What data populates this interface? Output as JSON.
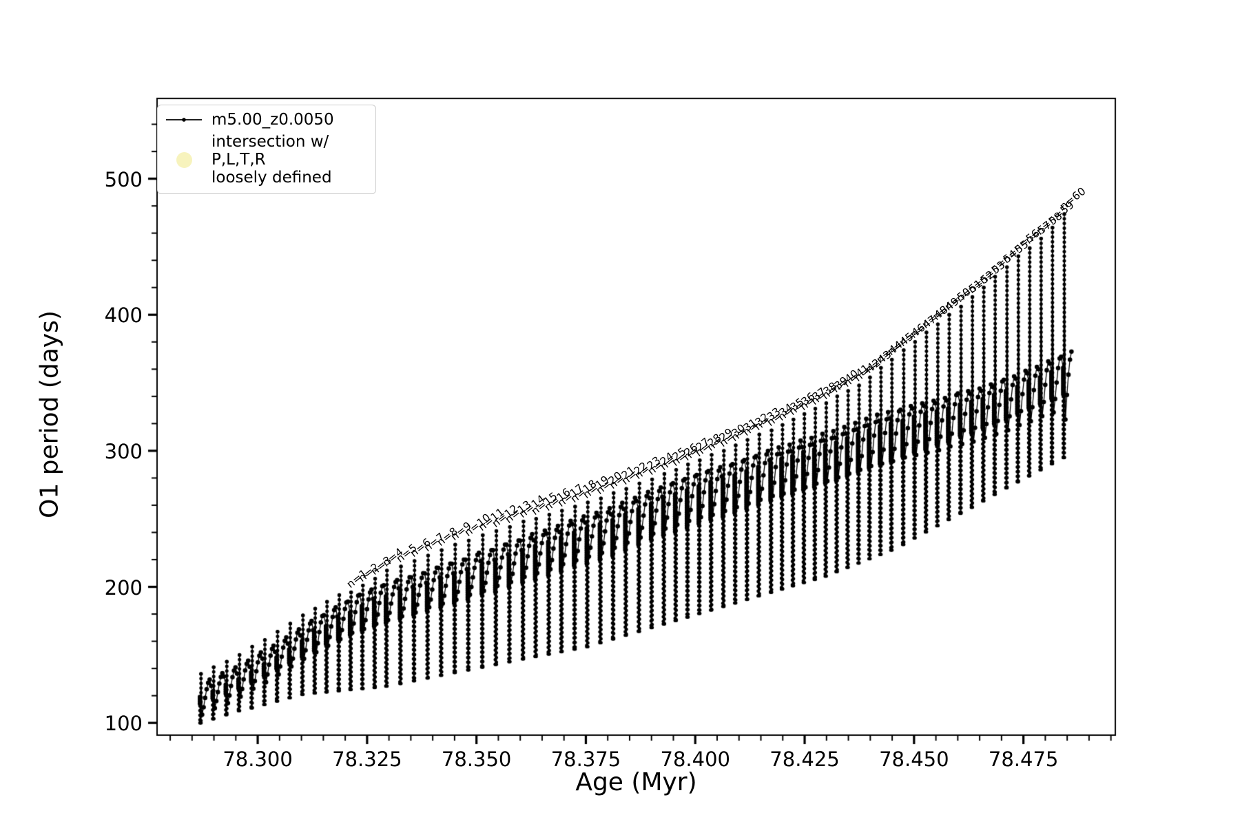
{
  "figure": {
    "background": "#ffffff",
    "series_color": "#000000",
    "intersection_color": "#f7f3bd"
  },
  "legend": {
    "series_label": "m5.00_z0.0050",
    "intersection_line1": "intersection w/ P,L,T,R",
    "intersection_line2": "loosely defined"
  },
  "chart_data": {
    "type": "line",
    "title": "",
    "xlabel": "Age (Myr)",
    "ylabel": "O1 period (days)",
    "xlim": [
      78.277,
      78.496
    ],
    "ylim": [
      91,
      559
    ],
    "grid": false,
    "legend_position": "upper left",
    "x_tick_labels": [
      "78.300",
      "78.325",
      "78.350",
      "78.375",
      "78.400",
      "78.425",
      "78.450",
      "78.475"
    ],
    "x_tick_values": [
      78.3,
      78.325,
      78.35,
      78.375,
      78.4,
      78.425,
      78.45,
      78.475
    ],
    "y_tick_labels": [
      "100",
      "200",
      "300",
      "400",
      "500"
    ],
    "y_tick_values": [
      100,
      200,
      300,
      400,
      500
    ],
    "x_minor_step": 0.005,
    "y_minor_step": 20,
    "annotation_angle_deg": -38,
    "series_name": "m5.00_z0.0050",
    "start_point": {
      "age": 78.2862,
      "period": 119
    },
    "cycles": [
      {
        "age": 78.2869,
        "dip": 100.0,
        "peak": 132,
        "spike": 136,
        "label": null
      },
      {
        "age": 78.2898,
        "dip": 103.0,
        "peak": 137,
        "spike": 141,
        "label": null
      },
      {
        "age": 78.2928,
        "dip": 106.0,
        "peak": 141,
        "spike": 145,
        "label": null
      },
      {
        "age": 78.2957,
        "dip": 109.0,
        "peak": 146,
        "spike": 150,
        "label": null
      },
      {
        "age": 78.2986,
        "dip": 111.0,
        "peak": 152,
        "spike": 156,
        "label": null
      },
      {
        "age": 78.3015,
        "dip": 113.5,
        "peak": 157,
        "spike": 161,
        "label": null
      },
      {
        "age": 78.3044,
        "dip": 116.0,
        "peak": 163,
        "spike": 167,
        "label": null
      },
      {
        "age": 78.3073,
        "dip": 118.5,
        "peak": 169,
        "spike": 173,
        "label": null
      },
      {
        "age": 78.3102,
        "dip": 121.0,
        "peak": 175,
        "spike": 179,
        "label": null
      },
      {
        "age": 78.313,
        "dip": 122.0,
        "peak": 180,
        "spike": 184,
        "label": null
      },
      {
        "age": 78.3157,
        "dip": 122.8,
        "peak": 185,
        "spike": 189,
        "label": null
      },
      {
        "age": 78.3185,
        "dip": 123.6,
        "peak": 190,
        "spike": 194,
        "label": null
      },
      {
        "age": 78.3212,
        "dip": 124.5,
        "peak": 195,
        "spike": 196,
        "label": "n=1"
      },
      {
        "age": 78.3239,
        "dip": 125.3,
        "peak": 198,
        "spike": 201,
        "label": "n=2"
      },
      {
        "age": 78.3267,
        "dip": 126.1,
        "peak": 202,
        "spike": 206,
        "label": "n=3"
      },
      {
        "age": 78.3294,
        "dip": 127.0,
        "peak": 205,
        "spike": 212,
        "label": "n=4"
      },
      {
        "age": 78.3326,
        "dip": 129.0,
        "peak": 208,
        "spike": 215,
        "label": "n=5"
      },
      {
        "age": 78.3357,
        "dip": 131.0,
        "peak": 211,
        "spike": 219,
        "label": "n=6"
      },
      {
        "age": 78.3388,
        "dip": 133.0,
        "peak": 215,
        "spike": 223,
        "label": "n=7"
      },
      {
        "age": 78.3419,
        "dip": 135.0,
        "peak": 218,
        "spike": 227,
        "label": "n=8"
      },
      {
        "age": 78.345,
        "dip": 137.0,
        "peak": 221,
        "spike": 231,
        "label": "n=9"
      },
      {
        "age": 78.3481,
        "dip": 139.0,
        "peak": 225,
        "spike": 234,
        "label": "n=10"
      },
      {
        "age": 78.3513,
        "dip": 141.0,
        "peak": 228,
        "spike": 238,
        "label": "n=11"
      },
      {
        "age": 78.3544,
        "dip": 143.0,
        "peak": 232,
        "spike": 241,
        "label": "n=12"
      },
      {
        "age": 78.3575,
        "dip": 145.0,
        "peak": 235,
        "spike": 244,
        "label": "n=13"
      },
      {
        "age": 78.3606,
        "dip": 147.0,
        "peak": 239,
        "spike": 248,
        "label": "n=14"
      },
      {
        "age": 78.3635,
        "dip": 148.8,
        "peak": 242,
        "spike": 250,
        "label": "n=15"
      },
      {
        "age": 78.3665,
        "dip": 150.6,
        "peak": 245,
        "spike": 253,
        "label": "n=16"
      },
      {
        "age": 78.3694,
        "dip": 152.4,
        "peak": 249,
        "spike": 256,
        "label": "n=17"
      },
      {
        "age": 78.3724,
        "dip": 154.2,
        "peak": 252,
        "spike": 259,
        "label": "n=18"
      },
      {
        "age": 78.3753,
        "dip": 156.0,
        "peak": 255,
        "spike": 262,
        "label": "n=19"
      },
      {
        "age": 78.3783,
        "dip": 158.9,
        "peak": 258,
        "spike": 265,
        "label": "n=20"
      },
      {
        "age": 78.3812,
        "dip": 161.7,
        "peak": 262,
        "spike": 269,
        "label": "n=21"
      },
      {
        "age": 78.3841,
        "dip": 164.5,
        "peak": 266,
        "spike": 272,
        "label": "n=22"
      },
      {
        "age": 78.3871,
        "dip": 167.3,
        "peak": 270,
        "spike": 276,
        "label": "n=23"
      },
      {
        "age": 78.39,
        "dip": 170.1,
        "peak": 273,
        "spike": 279,
        "label": "n=24"
      },
      {
        "age": 78.3928,
        "dip": 172.7,
        "peak": 277,
        "spike": 283,
        "label": "n=25"
      },
      {
        "age": 78.3955,
        "dip": 175.3,
        "peak": 280,
        "spike": 286,
        "label": "n=26"
      },
      {
        "age": 78.3982,
        "dip": 177.8,
        "peak": 283,
        "spike": 290,
        "label": "n=27"
      },
      {
        "age": 78.4009,
        "dip": 180.4,
        "peak": 286,
        "spike": 293,
        "label": "n=28"
      },
      {
        "age": 78.4036,
        "dip": 183.0,
        "peak": 288,
        "spike": 297,
        "label": "n=29"
      },
      {
        "age": 78.4064,
        "dip": 185.6,
        "peak": 291,
        "spike": 300,
        "label": "n=30"
      },
      {
        "age": 78.4091,
        "dip": 188.2,
        "peak": 294,
        "spike": 304,
        "label": "n=31"
      },
      {
        "age": 78.4118,
        "dip": 190.8,
        "peak": 297,
        "spike": 308,
        "label": "n=32"
      },
      {
        "age": 78.4145,
        "dip": 193.4,
        "peak": 300,
        "spike": 312,
        "label": "n=33"
      },
      {
        "age": 78.4173,
        "dip": 196.0,
        "peak": 303,
        "spike": 315,
        "label": "n=34"
      },
      {
        "age": 78.4198,
        "dip": 198.4,
        "peak": 305,
        "spike": 319,
        "label": "n=35"
      },
      {
        "age": 78.4223,
        "dip": 200.8,
        "peak": 308,
        "spike": 323,
        "label": "n=36"
      },
      {
        "age": 78.4248,
        "dip": 203.2,
        "peak": 310,
        "spike": 327,
        "label": "n=37"
      },
      {
        "age": 78.4273,
        "dip": 205.5,
        "peak": 313,
        "spike": 331,
        "label": "n=38"
      },
      {
        "age": 78.4298,
        "dip": 207.9,
        "peak": 315,
        "spike": 335,
        "label": "n=39"
      },
      {
        "age": 78.4323,
        "dip": 211.1,
        "peak": 318,
        "spike": 340,
        "label": "n=40"
      },
      {
        "age": 78.4348,
        "dip": 214.3,
        "peak": 321,
        "spike": 344,
        "label": "n=41"
      },
      {
        "age": 78.4373,
        "dip": 217.5,
        "peak": 324,
        "spike": 348,
        "label": "n=42"
      },
      {
        "age": 78.4398,
        "dip": 220.6,
        "peak": 327,
        "spike": 354,
        "label": "n=43"
      },
      {
        "age": 78.4423,
        "dip": 223.8,
        "peak": 329,
        "spike": 361,
        "label": "n=44"
      },
      {
        "age": 78.4448,
        "dip": 227.0,
        "peak": 331,
        "spike": 367,
        "label": "n=45"
      },
      {
        "age": 78.4475,
        "dip": 231.2,
        "peak": 334,
        "spike": 374,
        "label": "n=46"
      },
      {
        "age": 78.4501,
        "dip": 235.9,
        "peak": 336,
        "spike": 380,
        "label": "n=47"
      },
      {
        "age": 78.4527,
        "dip": 240.4,
        "peak": 338,
        "spike": 387,
        "label": "n=48"
      },
      {
        "age": 78.4553,
        "dip": 244.9,
        "peak": 340,
        "spike": 393,
        "label": "n=49"
      },
      {
        "age": 78.4579,
        "dip": 249.5,
        "peak": 343,
        "spike": 400,
        "label": "n=50"
      },
      {
        "age": 78.4606,
        "dip": 254.0,
        "peak": 345,
        "spike": 406,
        "label": "n=51"
      },
      {
        "age": 78.4632,
        "dip": 258.5,
        "peak": 347,
        "spike": 413,
        "label": "n=52"
      },
      {
        "age": 78.4658,
        "dip": 263.2,
        "peak": 350,
        "spike": 420,
        "label": "n=53"
      },
      {
        "age": 78.4684,
        "dip": 267.9,
        "peak": 353,
        "spike": 428,
        "label": "n=54"
      },
      {
        "age": 78.4711,
        "dip": 272.7,
        "peak": 356,
        "spike": 435,
        "label": "n=55"
      },
      {
        "age": 78.4737,
        "dip": 277.2,
        "peak": 360,
        "spike": 443,
        "label": "n=56"
      },
      {
        "age": 78.4763,
        "dip": 281.6,
        "peak": 363,
        "spike": 449,
        "label": "n=57"
      },
      {
        "age": 78.4789,
        "dip": 286.1,
        "peak": 367,
        "spike": 456,
        "label": "n=58"
      },
      {
        "age": 78.4815,
        "dip": 290.5,
        "peak": 370,
        "spike": 464,
        "label": "n=59"
      },
      {
        "age": 78.4842,
        "dip": 295.0,
        "peak": 373,
        "spike": 474,
        "label": "n=60"
      }
    ]
  }
}
